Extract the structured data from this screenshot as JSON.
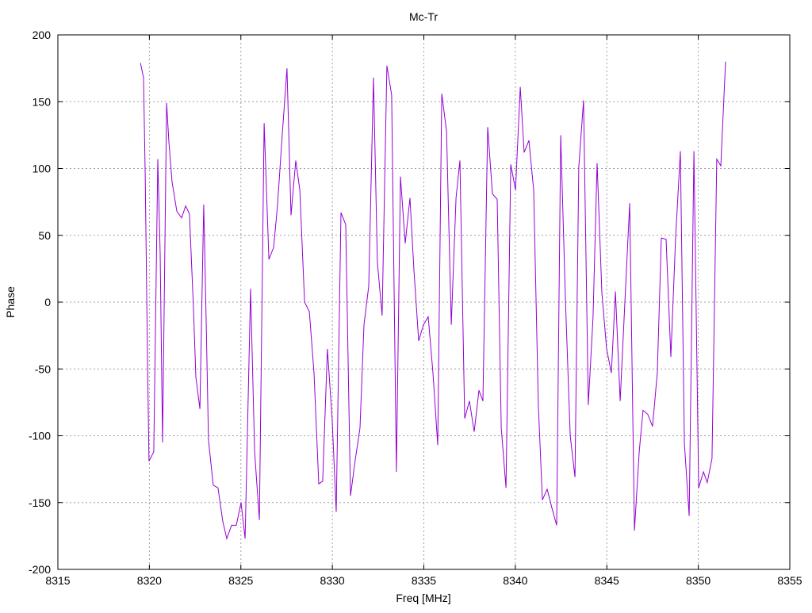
{
  "chart_data": {
    "type": "line",
    "title": "Mc-Tr",
    "xlabel": "Freq [MHz]",
    "ylabel": "Phase",
    "xlim": [
      8315,
      8355
    ],
    "ylim": [
      -200,
      200
    ],
    "xticks": [
      8315,
      8320,
      8325,
      8330,
      8335,
      8340,
      8345,
      8350,
      8355
    ],
    "yticks": [
      -200,
      -150,
      -100,
      -50,
      0,
      50,
      100,
      150,
      200
    ],
    "grid": true,
    "legend": "none",
    "line_color": "#9400d3",
    "series": [
      {
        "x": [
          8319.51,
          8319.68,
          8319.77,
          8319.9,
          8319.98,
          8320.24,
          8320.46,
          8320.59,
          8320.72,
          8320.94,
          8321.07,
          8321.24,
          8321.5,
          8321.76,
          8321.98,
          8322.19,
          8322.41,
          8322.54,
          8322.76,
          8322.97,
          8323.1,
          8323.23,
          8323.49,
          8323.75,
          8324.01,
          8324.23,
          8324.49,
          8324.75,
          8325.01,
          8325.23,
          8325.53,
          8325.75,
          8326.01,
          8326.27,
          8326.53,
          8326.79,
          8327.0,
          8327.26,
          8327.52,
          8327.74,
          8328.0,
          8328.22,
          8328.48,
          8328.74,
          8329.0,
          8329.26,
          8329.47,
          8329.73,
          8329.99,
          8330.21,
          8330.47,
          8330.73,
          8330.99,
          8331.25,
          8331.51,
          8331.73,
          8331.99,
          8332.25,
          8332.46,
          8332.72,
          8332.98,
          8333.24,
          8333.5,
          8333.72,
          8333.98,
          8334.24,
          8334.46,
          8334.72,
          8334.98,
          8335.24,
          8335.5,
          8335.76,
          8335.98,
          8336.24,
          8336.5,
          8336.76,
          8336.97,
          8337.23,
          8337.49,
          8337.75,
          8338.01,
          8338.23,
          8338.49,
          8338.75,
          8339.01,
          8339.23,
          8339.49,
          8339.75,
          8340.01,
          8340.27,
          8340.48,
          8340.74,
          8341.0,
          8341.26,
          8341.48,
          8341.74,
          8342.0,
          8342.26,
          8342.48,
          8342.74,
          8343.0,
          8343.26,
          8343.47,
          8343.73,
          8343.99,
          8344.25,
          8344.47,
          8344.73,
          8344.99,
          8345.25,
          8345.47,
          8345.73,
          8345.99,
          8346.25,
          8346.51,
          8346.77,
          8346.98,
          8347.24,
          8347.5,
          8347.76,
          8347.98,
          8348.24,
          8348.5,
          8348.76,
          8349.02,
          8349.24,
          8349.5,
          8349.76,
          8350.02,
          8350.28,
          8350.49,
          8350.75,
          8351.01,
          8351.23,
          8351.49
        ],
        "y": [
          179,
          168,
          96,
          -47,
          -119,
          -112,
          107,
          36,
          -105,
          149,
          119,
          90,
          68,
          63,
          72,
          66,
          -5,
          -56,
          -80,
          73,
          -11,
          -103,
          -137,
          -139,
          -164,
          -177,
          -167,
          -167,
          -150,
          -177,
          10,
          -112,
          -163,
          134,
          32,
          41,
          72,
          125,
          175,
          65,
          106,
          84,
          0,
          -7,
          -53,
          -136,
          -134,
          -35,
          -88,
          -157,
          67,
          58,
          -145,
          -118,
          -94,
          -17,
          12,
          168,
          30,
          -10,
          177,
          155,
          -127,
          94,
          44,
          78,
          24,
          -29,
          -17,
          -11,
          -53,
          -107,
          156,
          128,
          -17,
          78,
          106,
          -87,
          -74,
          -97,
          -66,
          -74,
          131,
          81,
          77,
          -94,
          -139,
          103,
          84,
          161,
          112,
          121,
          84,
          -77,
          -148,
          -140,
          -154,
          -167,
          125,
          1,
          -100,
          -131,
          101,
          151,
          -77,
          -11,
          104,
          7,
          -35,
          -53,
          8,
          -74,
          1,
          74,
          -171,
          -112,
          -81,
          -84,
          -93,
          -53,
          48,
          47,
          -41,
          48,
          113,
          -106,
          -160,
          113,
          -139,
          -127,
          -135,
          -117,
          107,
          102,
          180
        ]
      }
    ]
  }
}
